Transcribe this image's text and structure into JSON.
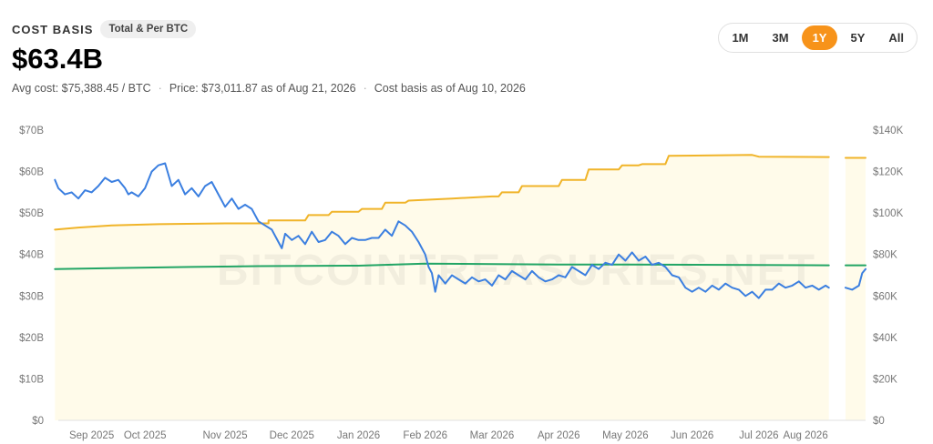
{
  "header": {
    "label": "COST BASIS",
    "badge": "Total & Per BTC",
    "value": "$63.4B",
    "avg_cost": "Avg cost: $75,388.45 / BTC",
    "price": "Price: $73,011.87 as of Aug 21, 2026",
    "asof": "Cost basis as of Aug 10, 2026"
  },
  "ranges": [
    {
      "label": "1M",
      "active": false
    },
    {
      "label": "3M",
      "active": false
    },
    {
      "label": "1Y",
      "active": true
    },
    {
      "label": "5Y",
      "active": false
    },
    {
      "label": "All",
      "active": false
    }
  ],
  "watermark": "BITCOINTREASURIES.NET",
  "colors": {
    "cost_basis": "#f0b429",
    "avg_cost": "#22a565",
    "btc_price": "#3b7fe0",
    "area_fill": "#fffbea",
    "accent": "#f7931a"
  },
  "chart_data": {
    "type": "line",
    "x_ticks": [
      "Sep 2025",
      "Oct 2025",
      "Nov 2025",
      "Dec 2025",
      "Jan 2026",
      "Feb 2026",
      "Mar 2026",
      "Apr 2026",
      "May 2026",
      "Jun 2026",
      "Jul 2026",
      "Aug 2026"
    ],
    "x_tick_pos": [
      0.5,
      1.3,
      2.5,
      3.5,
      4.5,
      5.5,
      6.5,
      7.5,
      8.5,
      9.5,
      10.5,
      11.2
    ],
    "x_range": [
      0,
      12.1
    ],
    "y_left": {
      "ticks": [
        "$0",
        "$10B",
        "$20B",
        "$30B",
        "$40B",
        "$50B",
        "$60B",
        "$70B"
      ],
      "range": [
        0,
        70
      ],
      "unit": "B"
    },
    "y_right": {
      "ticks": [
        "$0",
        "$20K",
        "$40K",
        "$60K",
        "$80K",
        "$100K",
        "$120K",
        "$140K"
      ],
      "range": [
        0,
        140
      ],
      "unit": "K"
    },
    "gap": [
      11.55,
      11.8
    ],
    "series": [
      {
        "key": "cost_basis",
        "axis": "left",
        "area": true,
        "step": true,
        "points": [
          [
            -0.05,
            46.0
          ],
          [
            0.3,
            46.5
          ],
          [
            0.8,
            47.0
          ],
          [
            1.5,
            47.3
          ],
          [
            2.5,
            47.5
          ],
          [
            3.15,
            47.5
          ],
          [
            3.15,
            48.2
          ],
          [
            3.7,
            48.2
          ],
          [
            3.75,
            49.5
          ],
          [
            4.05,
            49.5
          ],
          [
            4.1,
            50.3
          ],
          [
            4.5,
            50.3
          ],
          [
            4.55,
            51.0
          ],
          [
            4.85,
            51.0
          ],
          [
            4.9,
            52.5
          ],
          [
            5.2,
            52.5
          ],
          [
            5.25,
            53.0
          ],
          [
            5.9,
            53.5
          ],
          [
            6.5,
            54.0
          ],
          [
            6.6,
            54.0
          ],
          [
            6.65,
            55.0
          ],
          [
            6.9,
            55.0
          ],
          [
            6.95,
            56.5
          ],
          [
            7.5,
            56.5
          ],
          [
            7.55,
            58.0
          ],
          [
            7.9,
            58.0
          ],
          [
            7.95,
            60.5
          ],
          [
            8.4,
            60.5
          ],
          [
            8.45,
            61.5
          ],
          [
            8.7,
            61.5
          ],
          [
            8.75,
            61.8
          ],
          [
            9.1,
            61.8
          ],
          [
            9.15,
            63.8
          ],
          [
            10.4,
            64.0
          ],
          [
            10.5,
            63.6
          ],
          [
            11.55,
            63.5
          ],
          [
            11.8,
            63.3
          ],
          [
            12.1,
            63.3
          ]
        ]
      },
      {
        "key": "avg_cost",
        "axis": "left",
        "area": false,
        "step": false,
        "points": [
          [
            -0.05,
            36.5
          ],
          [
            2.0,
            37.0
          ],
          [
            3.0,
            37.2
          ],
          [
            4.5,
            37.3
          ],
          [
            5.5,
            37.8
          ],
          [
            6.5,
            37.7
          ],
          [
            7.5,
            37.6
          ],
          [
            8.5,
            37.6
          ],
          [
            10.0,
            37.5
          ],
          [
            11.55,
            37.4
          ],
          [
            11.8,
            37.4
          ],
          [
            12.1,
            37.4
          ]
        ]
      },
      {
        "key": "btc_price",
        "axis": "right",
        "area": false,
        "step": false,
        "points": [
          [
            -0.05,
            116
          ],
          [
            0.0,
            112
          ],
          [
            0.1,
            109
          ],
          [
            0.2,
            110
          ],
          [
            0.3,
            107
          ],
          [
            0.4,
            111
          ],
          [
            0.5,
            110
          ],
          [
            0.6,
            113
          ],
          [
            0.7,
            117
          ],
          [
            0.8,
            115
          ],
          [
            0.9,
            116
          ],
          [
            1.0,
            112
          ],
          [
            1.05,
            109
          ],
          [
            1.1,
            110
          ],
          [
            1.2,
            108
          ],
          [
            1.3,
            112
          ],
          [
            1.4,
            120
          ],
          [
            1.5,
            123
          ],
          [
            1.6,
            124
          ],
          [
            1.7,
            113
          ],
          [
            1.8,
            116
          ],
          [
            1.9,
            109
          ],
          [
            2.0,
            112
          ],
          [
            2.1,
            108
          ],
          [
            2.2,
            113
          ],
          [
            2.3,
            115
          ],
          [
            2.4,
            109
          ],
          [
            2.5,
            103
          ],
          [
            2.6,
            107
          ],
          [
            2.7,
            102
          ],
          [
            2.8,
            104
          ],
          [
            2.9,
            102
          ],
          [
            3.0,
            96
          ],
          [
            3.1,
            94
          ],
          [
            3.2,
            92
          ],
          [
            3.3,
            86
          ],
          [
            3.35,
            83
          ],
          [
            3.4,
            90
          ],
          [
            3.5,
            87
          ],
          [
            3.6,
            89
          ],
          [
            3.7,
            85
          ],
          [
            3.8,
            91
          ],
          [
            3.9,
            86
          ],
          [
            4.0,
            87
          ],
          [
            4.1,
            91
          ],
          [
            4.2,
            89
          ],
          [
            4.3,
            85
          ],
          [
            4.4,
            88
          ],
          [
            4.5,
            87
          ],
          [
            4.6,
            87
          ],
          [
            4.7,
            88
          ],
          [
            4.8,
            88
          ],
          [
            4.9,
            92
          ],
          [
            5.0,
            89
          ],
          [
            5.1,
            96
          ],
          [
            5.2,
            94
          ],
          [
            5.3,
            91
          ],
          [
            5.4,
            86
          ],
          [
            5.5,
            80
          ],
          [
            5.55,
            74
          ],
          [
            5.6,
            71
          ],
          [
            5.65,
            62
          ],
          [
            5.7,
            70
          ],
          [
            5.8,
            66
          ],
          [
            5.9,
            70
          ],
          [
            6.0,
            68
          ],
          [
            6.1,
            66
          ],
          [
            6.2,
            69
          ],
          [
            6.3,
            67
          ],
          [
            6.4,
            68
          ],
          [
            6.5,
            65
          ],
          [
            6.6,
            70
          ],
          [
            6.7,
            68
          ],
          [
            6.8,
            72
          ],
          [
            6.9,
            70
          ],
          [
            7.0,
            68
          ],
          [
            7.1,
            72
          ],
          [
            7.2,
            69
          ],
          [
            7.3,
            67
          ],
          [
            7.4,
            68
          ],
          [
            7.5,
            70
          ],
          [
            7.6,
            69
          ],
          [
            7.7,
            74
          ],
          [
            7.8,
            72
          ],
          [
            7.9,
            70
          ],
          [
            8.0,
            75
          ],
          [
            8.1,
            73
          ],
          [
            8.2,
            76
          ],
          [
            8.3,
            75
          ],
          [
            8.4,
            80
          ],
          [
            8.5,
            77
          ],
          [
            8.6,
            81
          ],
          [
            8.7,
            77
          ],
          [
            8.8,
            79
          ],
          [
            8.9,
            75
          ],
          [
            9.0,
            76
          ],
          [
            9.1,
            74
          ],
          [
            9.2,
            70
          ],
          [
            9.3,
            69
          ],
          [
            9.4,
            64
          ],
          [
            9.5,
            62
          ],
          [
            9.6,
            64
          ],
          [
            9.7,
            62
          ],
          [
            9.8,
            65
          ],
          [
            9.9,
            63
          ],
          [
            10.0,
            66
          ],
          [
            10.1,
            64
          ],
          [
            10.2,
            63
          ],
          [
            10.3,
            60
          ],
          [
            10.4,
            62
          ],
          [
            10.5,
            59
          ],
          [
            10.6,
            63
          ],
          [
            10.7,
            63
          ],
          [
            10.8,
            66
          ],
          [
            10.9,
            64
          ],
          [
            11.0,
            65
          ],
          [
            11.1,
            67
          ],
          [
            11.2,
            64
          ],
          [
            11.3,
            65
          ],
          [
            11.4,
            63
          ],
          [
            11.5,
            65
          ],
          [
            11.55,
            64
          ],
          [
            11.8,
            64
          ],
          [
            11.9,
            63
          ],
          [
            12.0,
            65
          ],
          [
            12.05,
            71
          ],
          [
            12.1,
            73
          ]
        ]
      }
    ]
  }
}
